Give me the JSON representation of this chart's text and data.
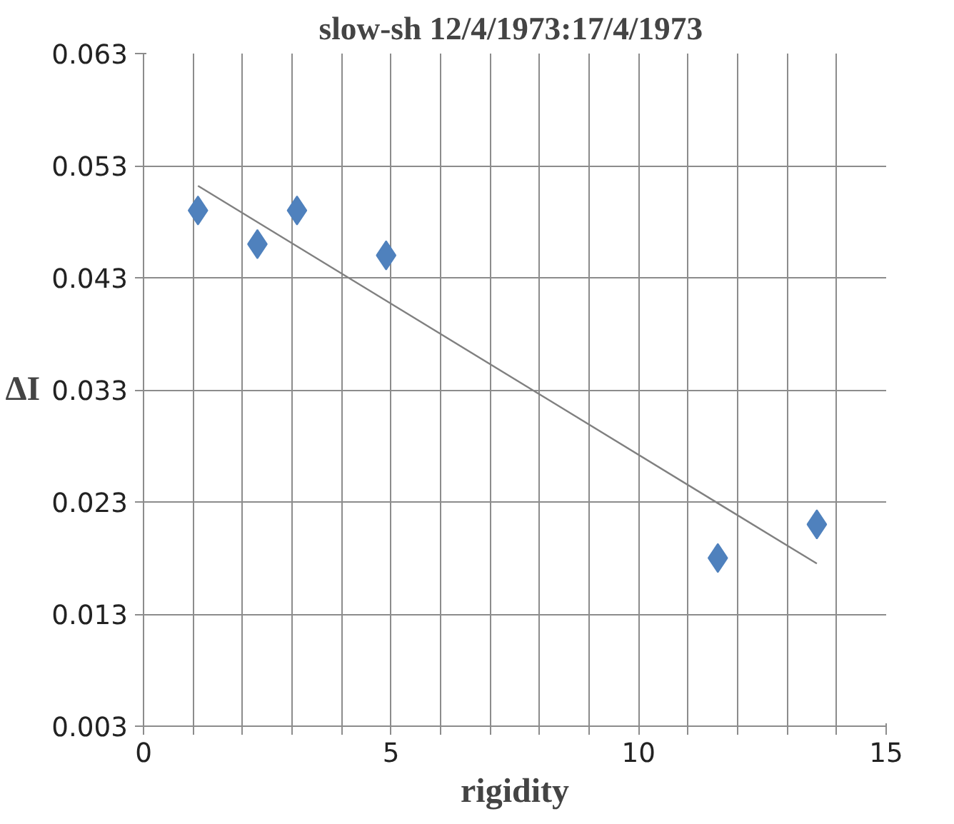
{
  "chart_data": {
    "type": "scatter",
    "title": "slow-sh  12/4/1973:17/4/1973",
    "xlabel": "rigidity",
    "ylabel": "ΔI",
    "series": [
      {
        "color": "#4f81bd",
        "x": [
          1.1,
          2.3,
          3.1,
          4.9,
          11.6,
          13.6
        ],
        "values": [
          0.049,
          0.046,
          0.049,
          0.045,
          0.018,
          0.021
        ],
        "marker": "diamond"
      },
      {
        "type": "line",
        "color": "#808080",
        "x": [
          1.1,
          13.6
        ],
        "values": [
          0.0512,
          0.0175
        ],
        "marker": "none"
      }
    ],
    "xlim": [
      0,
      15
    ],
    "ylim": [
      0.003,
      0.063
    ],
    "xticks": [
      0,
      {
        "value": 1,
        "label": null
      },
      {
        "value": 2,
        "label": null
      },
      {
        "value": 3,
        "label": null
      },
      {
        "value": 4,
        "label": null
      },
      5,
      {
        "value": 6,
        "label": null
      },
      {
        "value": 7,
        "label": null
      },
      {
        "value": 8,
        "label": null
      },
      {
        "value": 9,
        "label": null
      },
      10,
      {
        "value": 11,
        "label": null
      },
      {
        "value": 12,
        "label": null
      },
      {
        "value": 13,
        "label": null
      },
      {
        "value": 14,
        "label": null
      },
      15
    ],
    "yticks": [
      {
        "value": 0.003,
        "label": "0.003"
      },
      {
        "value": 0.013,
        "label": "0.013"
      },
      {
        "value": 0.023,
        "label": "0.023"
      },
      {
        "value": 0.033,
        "label": "0.033"
      },
      {
        "value": 0.043,
        "label": "0.043"
      },
      {
        "value": 0.053,
        "label": "0.053"
      },
      {
        "value": 0.063,
        "label": "0.063"
      }
    ],
    "grid": true
  }
}
